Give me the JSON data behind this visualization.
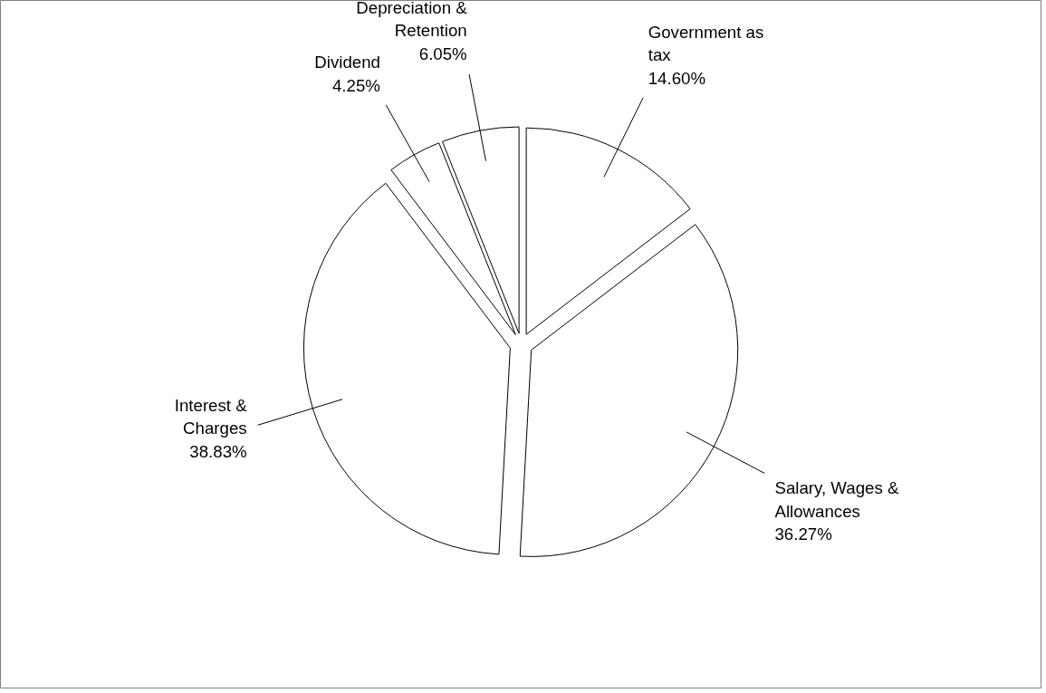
{
  "chart_data": {
    "type": "pie",
    "categories": [
      "Government as tax",
      "Salary, Wages & Allowances",
      "Interest & Charges",
      "Dividend",
      "Depreciation & Retention"
    ],
    "values": [
      14.6,
      36.27,
      38.83,
      4.25,
      6.05
    ],
    "colors": [
      "#ffffff",
      "#ffffff",
      "#ffffff",
      "#ffffff",
      "#ffffff"
    ],
    "value_labels": [
      "14.60%",
      "36.27%",
      "38.83%",
      "4.25%",
      "6.05%"
    ]
  }
}
